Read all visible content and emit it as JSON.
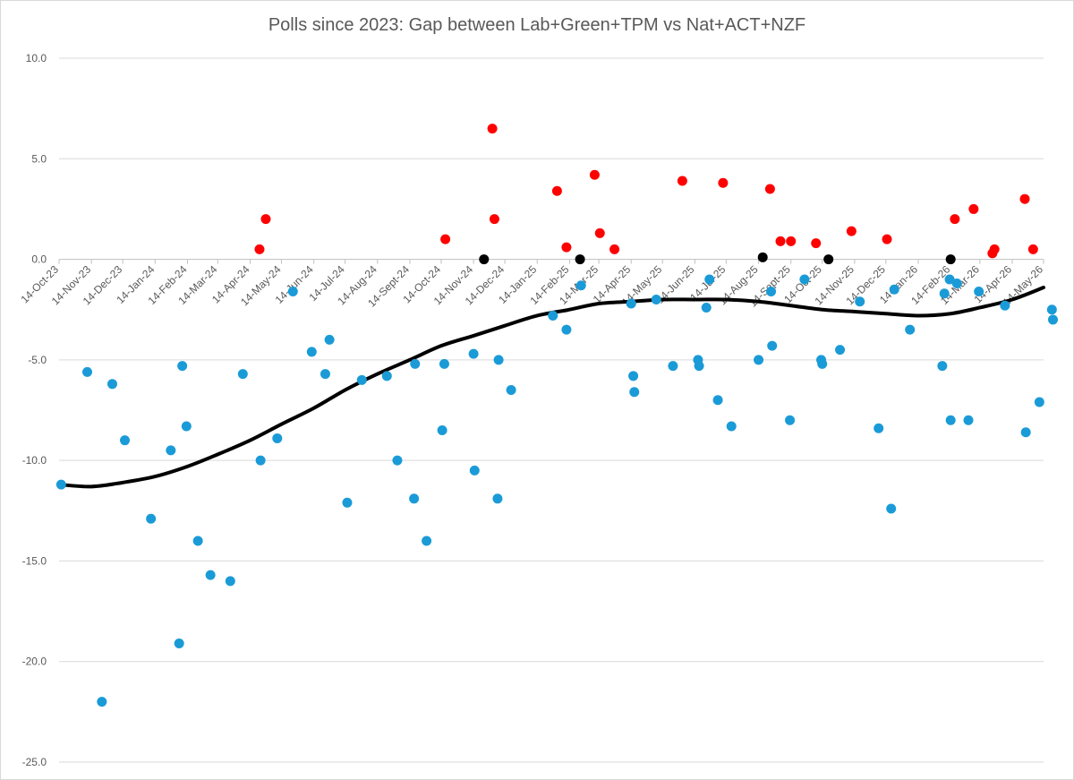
{
  "chart_data": {
    "type": "scatter",
    "title": "Polls since 2023: Gap between Lab+Green+TPM vs Nat+ACT+NZF",
    "xlabel": "",
    "ylabel": "",
    "ylim": [
      -25,
      10
    ],
    "yticks": [
      10,
      5,
      0,
      -5,
      -10,
      -15,
      -20,
      -25
    ],
    "ytick_labels": [
      "10.0",
      "5.0",
      "0.0",
      "-5.0",
      "-10.0",
      "-15.0",
      "-20.0",
      "-25.0"
    ],
    "xlim": [
      "2023-10-14",
      "2026-05-14"
    ],
    "xtick_dates": [
      "2023-10-14",
      "2023-11-14",
      "2023-12-14",
      "2024-01-14",
      "2024-02-14",
      "2024-03-14",
      "2024-04-14",
      "2024-05-14",
      "2024-06-14",
      "2024-07-14",
      "2024-08-14",
      "2024-09-14",
      "2024-10-14",
      "2024-11-14",
      "2024-12-14",
      "2025-01-14",
      "2025-02-14",
      "2025-03-14",
      "2025-04-14",
      "2025-05-14",
      "2025-06-14",
      "2025-07-14",
      "2025-08-14",
      "2025-09-14",
      "2025-10-14",
      "2025-11-14",
      "2025-12-14",
      "2026-01-14",
      "2026-02-14",
      "2026-03-14",
      "2026-04-14",
      "2026-05-14"
    ],
    "xtick_labels": [
      "14-Oct-23",
      "14-Nov-23",
      "14-Dec-23",
      "14-Jan-24",
      "14-Feb-24",
      "14-Mar-24",
      "14-Apr-24",
      "14-May-24",
      "14-Jun-24",
      "14-Jul-24",
      "14-Aug-24",
      "14-Sept-24",
      "14-Oct-24",
      "14-Nov-24",
      "14-Dec-24",
      "14-Jan-25",
      "14-Feb-25",
      "14-Mar-25",
      "14-Apr-25",
      "14-May-25",
      "14-Jun-25",
      "14-Jul-25",
      "14-Aug-25",
      "14-Sept-25",
      "14-Oct-25",
      "14-Nov-25",
      "14-Dec-25",
      "14-Jan-26",
      "14-Feb-26",
      "14-Mar-26",
      "14-Apr-26",
      "14-May-26"
    ],
    "grid": true,
    "colors": {
      "positive": "#ff0000",
      "negative": "#1a9bd7",
      "tie": "#000000",
      "trend": "#000000",
      "grid": "#d9d9d9",
      "text": "#595959"
    },
    "series": [
      {
        "color": "#ff0000",
        "points": [
          [
            "2024-04-23",
            0.5
          ],
          [
            "2024-04-29",
            2.0
          ],
          [
            "2024-10-18",
            1.0
          ],
          [
            "2024-12-02",
            6.5
          ],
          [
            "2024-12-04",
            2.0
          ],
          [
            "2025-02-02",
            3.4
          ],
          [
            "2025-02-11",
            0.6
          ],
          [
            "2025-03-10",
            4.2
          ],
          [
            "2025-03-15",
            1.3
          ],
          [
            "2025-03-29",
            0.5
          ],
          [
            "2025-06-02",
            3.9
          ],
          [
            "2025-07-11",
            3.8
          ],
          [
            "2025-08-25",
            3.5
          ],
          [
            "2025-09-04",
            0.9
          ],
          [
            "2025-09-14",
            0.9
          ],
          [
            "2025-10-08",
            0.8
          ],
          [
            "2025-11-11",
            1.4
          ],
          [
            "2025-12-15",
            1.0
          ],
          [
            "2026-02-18",
            2.0
          ],
          [
            "2026-03-08",
            2.5
          ],
          [
            "2026-03-26",
            0.3
          ],
          [
            "2026-03-28",
            0.5
          ],
          [
            "2026-04-26",
            3.0
          ],
          [
            "2026-05-04",
            0.5
          ]
        ]
      },
      {
        "color": "#1a9bd7",
        "points": [
          [
            "2023-10-16",
            -11.2
          ],
          [
            "2023-11-10",
            -5.6
          ],
          [
            "2023-11-24",
            -22.0
          ],
          [
            "2023-12-04",
            -6.2
          ],
          [
            "2023-12-16",
            -9.0
          ],
          [
            "2024-01-10",
            -12.9
          ],
          [
            "2024-01-29",
            -9.5
          ],
          [
            "2024-02-06",
            -19.1
          ],
          [
            "2024-02-09",
            -5.3
          ],
          [
            "2024-02-13",
            -8.3
          ],
          [
            "2024-02-24",
            -14.0
          ],
          [
            "2024-03-07",
            -15.7
          ],
          [
            "2024-03-26",
            -16.0
          ],
          [
            "2024-04-07",
            -5.7
          ],
          [
            "2024-04-24",
            -10.0
          ],
          [
            "2024-05-10",
            -8.9
          ],
          [
            "2024-05-25",
            -1.6
          ],
          [
            "2024-06-12",
            -4.6
          ],
          [
            "2024-06-25",
            -5.7
          ],
          [
            "2024-06-29",
            -4.0
          ],
          [
            "2024-07-16",
            -12.1
          ],
          [
            "2024-07-30",
            -6.0
          ],
          [
            "2024-08-23",
            -5.8
          ],
          [
            "2024-09-02",
            -10.0
          ],
          [
            "2024-09-18",
            -11.9
          ],
          [
            "2024-09-19",
            -5.2
          ],
          [
            "2024-09-30",
            -14.0
          ],
          [
            "2024-10-15",
            -8.5
          ],
          [
            "2024-10-17",
            -5.2
          ],
          [
            "2024-11-14",
            -4.7
          ],
          [
            "2024-11-15",
            -10.5
          ],
          [
            "2024-12-07",
            -11.9
          ],
          [
            "2024-12-08",
            -5.0
          ],
          [
            "2024-12-20",
            -6.5
          ],
          [
            "2025-01-29",
            -2.8
          ],
          [
            "2025-02-11",
            -3.5
          ],
          [
            "2025-02-25",
            -1.3
          ],
          [
            "2025-04-14",
            -2.2
          ],
          [
            "2025-04-16",
            -5.8
          ],
          [
            "2025-04-17",
            -6.6
          ],
          [
            "2025-05-08",
            -2.0
          ],
          [
            "2025-05-24",
            -5.3
          ],
          [
            "2025-06-17",
            -5.0
          ],
          [
            "2025-06-18",
            -5.3
          ],
          [
            "2025-06-25",
            -2.4
          ],
          [
            "2025-06-28",
            -1.0
          ],
          [
            "2025-07-06",
            -7.0
          ],
          [
            "2025-07-19",
            -8.3
          ],
          [
            "2025-08-14",
            -5.0
          ],
          [
            "2025-08-26",
            -1.6
          ],
          [
            "2025-08-27",
            -4.3
          ],
          [
            "2025-09-13",
            -8.0
          ],
          [
            "2025-09-27",
            -1.0
          ],
          [
            "2025-10-13",
            -5.0
          ],
          [
            "2025-10-14",
            -5.2
          ],
          [
            "2025-10-31",
            -4.5
          ],
          [
            "2025-11-19",
            -2.1
          ],
          [
            "2025-12-07",
            -8.4
          ],
          [
            "2025-12-19",
            -12.4
          ],
          [
            "2025-12-22",
            -1.5
          ],
          [
            "2026-01-06",
            -3.5
          ],
          [
            "2026-02-06",
            -5.3
          ],
          [
            "2026-02-08",
            -1.7
          ],
          [
            "2026-02-13",
            -1.0
          ],
          [
            "2026-02-14",
            -8.0
          ],
          [
            "2026-02-20",
            -1.2
          ],
          [
            "2026-03-03",
            -8.0
          ],
          [
            "2026-03-13",
            -1.6
          ],
          [
            "2026-04-07",
            -2.3
          ],
          [
            "2026-04-27",
            -8.6
          ],
          [
            "2026-05-10",
            -7.1
          ],
          [
            "2026-05-22",
            -2.5
          ],
          [
            "2026-05-23",
            -3.0
          ]
        ]
      },
      {
        "color": "#000000",
        "points": [
          [
            "2024-11-24",
            0.0
          ],
          [
            "2025-02-24",
            0.0
          ],
          [
            "2025-08-18",
            0.1
          ],
          [
            "2025-10-20",
            0.0
          ],
          [
            "2026-02-14",
            0.0
          ]
        ]
      }
    ],
    "trendline": {
      "color": "#000000",
      "points": [
        [
          "2023-10-14",
          -11.2
        ],
        [
          "2023-11-14",
          -11.3
        ],
        [
          "2023-12-14",
          -11.1
        ],
        [
          "2024-01-14",
          -10.8
        ],
        [
          "2024-02-14",
          -10.3
        ],
        [
          "2024-03-14",
          -9.7
        ],
        [
          "2024-04-14",
          -9.0
        ],
        [
          "2024-05-14",
          -8.2
        ],
        [
          "2024-06-14",
          -7.4
        ],
        [
          "2024-07-14",
          -6.5
        ],
        [
          "2024-08-14",
          -5.7
        ],
        [
          "2024-09-14",
          -5.0
        ],
        [
          "2024-10-14",
          -4.3
        ],
        [
          "2024-11-14",
          -3.8
        ],
        [
          "2024-12-14",
          -3.3
        ],
        [
          "2025-01-14",
          -2.8
        ],
        [
          "2025-02-14",
          -2.5
        ],
        [
          "2025-03-14",
          -2.2
        ],
        [
          "2025-04-14",
          -2.1
        ],
        [
          "2025-05-14",
          -2.0
        ],
        [
          "2025-06-14",
          -2.0
        ],
        [
          "2025-07-14",
          -2.0
        ],
        [
          "2025-08-14",
          -2.1
        ],
        [
          "2025-09-14",
          -2.3
        ],
        [
          "2025-10-14",
          -2.5
        ],
        [
          "2025-11-14",
          -2.6
        ],
        [
          "2025-12-14",
          -2.7
        ],
        [
          "2026-01-14",
          -2.8
        ],
        [
          "2026-02-14",
          -2.7
        ],
        [
          "2026-03-14",
          -2.4
        ],
        [
          "2026-04-14",
          -2.0
        ],
        [
          "2026-05-14",
          -1.4
        ]
      ]
    }
  }
}
